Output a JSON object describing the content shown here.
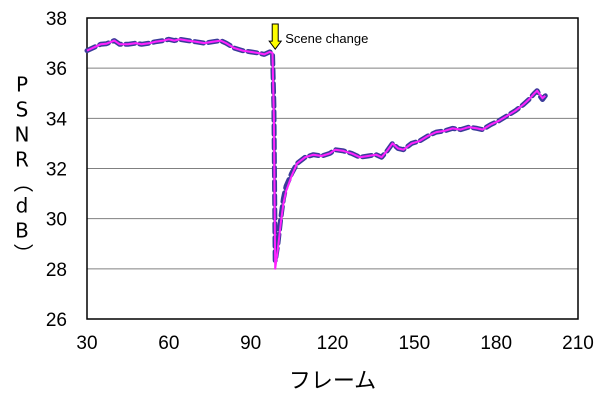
{
  "chart_data": {
    "type": "line",
    "xlabel": "フレーム",
    "ylabel": "PSNR（dB）",
    "xlim": [
      30,
      210
    ],
    "ylim": [
      26,
      38
    ],
    "xticks": [
      "30",
      "60",
      "90",
      "120",
      "150",
      "180",
      "210"
    ],
    "yticks": [
      "26",
      "28",
      "30",
      "32",
      "34",
      "36",
      "38"
    ],
    "grid": "horizontal",
    "annotation": {
      "label": "Scene change",
      "x": 99,
      "y": 36.6,
      "arrow_color": "#ffff00"
    },
    "colors": {
      "series_a": "#3b3b9a",
      "series_b": "#ff22ff",
      "grid": "#808080"
    },
    "series": [
      {
        "style": "thick dashed",
        "color": "#3b3b9a",
        "points": [
          [
            30,
            36.7
          ],
          [
            33,
            36.85
          ],
          [
            35,
            36.95
          ],
          [
            37,
            36.97
          ],
          [
            40,
            37.1
          ],
          [
            42,
            36.95
          ],
          [
            45,
            36.95
          ],
          [
            48,
            37.0
          ],
          [
            50,
            36.95
          ],
          [
            53,
            37.0
          ],
          [
            55,
            37.05
          ],
          [
            58,
            37.1
          ],
          [
            60,
            37.15
          ],
          [
            62,
            37.1
          ],
          [
            64,
            37.15
          ],
          [
            67,
            37.1
          ],
          [
            70,
            37.05
          ],
          [
            73,
            37.0
          ],
          [
            76,
            37.05
          ],
          [
            79,
            37.1
          ],
          [
            81,
            37.0
          ],
          [
            84,
            36.8
          ],
          [
            87,
            36.7
          ],
          [
            90,
            36.65
          ],
          [
            93,
            36.6
          ],
          [
            95,
            36.55
          ],
          [
            97,
            36.65
          ],
          [
            98,
            36.6
          ],
          [
            98.5,
            34.5
          ],
          [
            99,
            28.3
          ],
          [
            100,
            29.0
          ],
          [
            101,
            30.0
          ],
          [
            102,
            30.8
          ],
          [
            103,
            31.3
          ],
          [
            105,
            31.8
          ],
          [
            107,
            32.2
          ],
          [
            110,
            32.45
          ],
          [
            113,
            32.55
          ],
          [
            116,
            32.5
          ],
          [
            119,
            32.6
          ],
          [
            121,
            32.75
          ],
          [
            124,
            32.7
          ],
          [
            127,
            32.6
          ],
          [
            130,
            32.45
          ],
          [
            133,
            32.5
          ],
          [
            136,
            32.55
          ],
          [
            138,
            32.45
          ],
          [
            140,
            32.7
          ],
          [
            142,
            33.0
          ],
          [
            144,
            32.8
          ],
          [
            146,
            32.75
          ],
          [
            149,
            33.0
          ],
          [
            152,
            33.1
          ],
          [
            155,
            33.3
          ],
          [
            158,
            33.45
          ],
          [
            161,
            33.5
          ],
          [
            164,
            33.6
          ],
          [
            167,
            33.55
          ],
          [
            170,
            33.65
          ],
          [
            173,
            33.6
          ],
          [
            175,
            33.55
          ],
          [
            178,
            33.75
          ],
          [
            181,
            33.9
          ],
          [
            184,
            34.1
          ],
          [
            187,
            34.3
          ],
          [
            190,
            34.55
          ],
          [
            192,
            34.75
          ],
          [
            194,
            35.0
          ],
          [
            195,
            35.1
          ],
          [
            196,
            34.9
          ],
          [
            197,
            34.75
          ],
          [
            198,
            34.9
          ]
        ]
      },
      {
        "style": "thin solid",
        "color": "#ff22ff",
        "points": [
          [
            30,
            36.7
          ],
          [
            33,
            36.85
          ],
          [
            35,
            36.95
          ],
          [
            37,
            36.97
          ],
          [
            40,
            37.1
          ],
          [
            42,
            36.95
          ],
          [
            45,
            36.95
          ],
          [
            48,
            37.0
          ],
          [
            50,
            36.95
          ],
          [
            53,
            37.0
          ],
          [
            55,
            37.05
          ],
          [
            58,
            37.1
          ],
          [
            60,
            37.15
          ],
          [
            62,
            37.1
          ],
          [
            64,
            37.15
          ],
          [
            67,
            37.1
          ],
          [
            70,
            37.05
          ],
          [
            73,
            37.0
          ],
          [
            76,
            37.05
          ],
          [
            79,
            37.1
          ],
          [
            81,
            37.0
          ],
          [
            84,
            36.8
          ],
          [
            87,
            36.7
          ],
          [
            90,
            36.65
          ],
          [
            93,
            36.6
          ],
          [
            95,
            36.55
          ],
          [
            97,
            36.65
          ],
          [
            98,
            36.6
          ],
          [
            98.5,
            34.0
          ],
          [
            99,
            28.0
          ],
          [
            100,
            28.8
          ],
          [
            101,
            29.8
          ],
          [
            102,
            30.6
          ],
          [
            103,
            31.1
          ],
          [
            105,
            31.7
          ],
          [
            107,
            32.2
          ],
          [
            110,
            32.45
          ],
          [
            113,
            32.55
          ],
          [
            116,
            32.5
          ],
          [
            119,
            32.6
          ],
          [
            121,
            32.75
          ],
          [
            124,
            32.7
          ],
          [
            127,
            32.6
          ],
          [
            130,
            32.45
          ],
          [
            133,
            32.5
          ],
          [
            136,
            32.55
          ],
          [
            138,
            32.45
          ],
          [
            140,
            32.7
          ],
          [
            142,
            33.0
          ],
          [
            144,
            32.8
          ],
          [
            146,
            32.75
          ],
          [
            149,
            33.0
          ],
          [
            152,
            33.1
          ],
          [
            155,
            33.3
          ],
          [
            158,
            33.45
          ],
          [
            161,
            33.5
          ],
          [
            164,
            33.6
          ],
          [
            167,
            33.55
          ],
          [
            170,
            33.65
          ],
          [
            173,
            33.6
          ],
          [
            175,
            33.55
          ],
          [
            178,
            33.75
          ],
          [
            181,
            33.9
          ],
          [
            184,
            34.1
          ],
          [
            187,
            34.3
          ],
          [
            190,
            34.55
          ],
          [
            192,
            34.75
          ],
          [
            194,
            35.0
          ],
          [
            195,
            35.1
          ],
          [
            196,
            34.95
          ],
          [
            197,
            34.8
          ],
          [
            198,
            34.9
          ]
        ]
      }
    ]
  }
}
